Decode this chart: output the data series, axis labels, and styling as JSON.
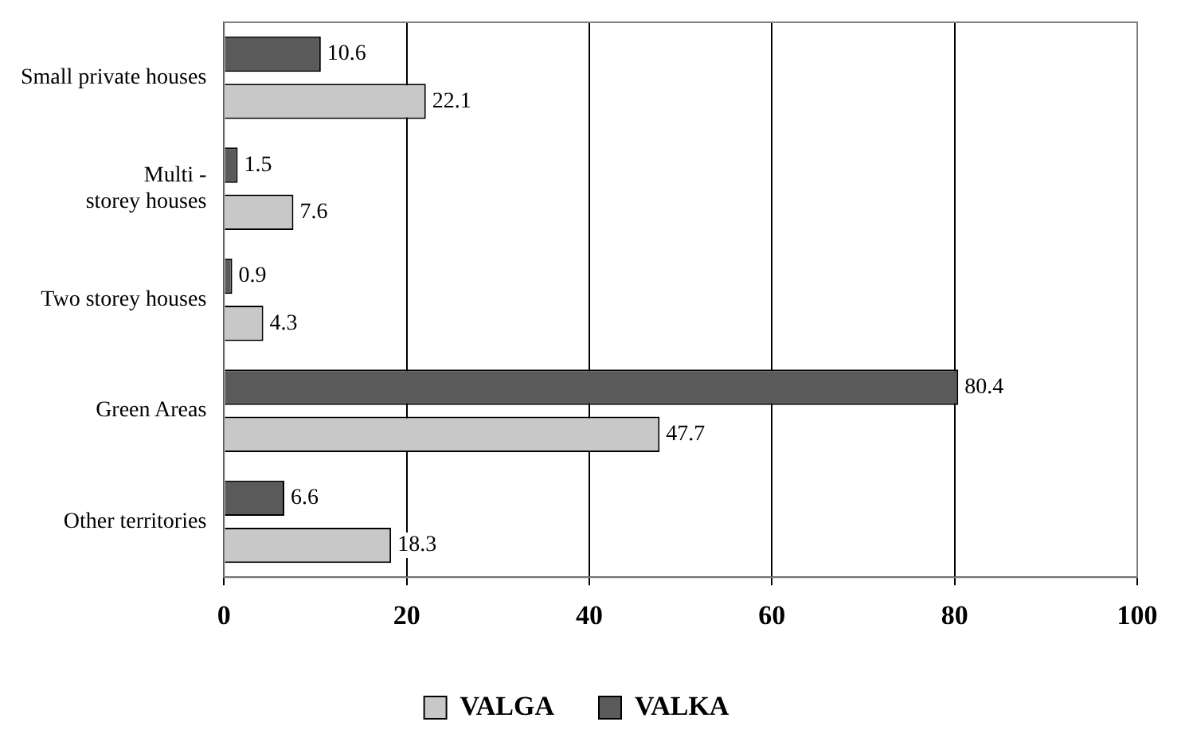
{
  "chart_data": {
    "type": "bar",
    "orientation": "horizontal",
    "categories": [
      "Small private houses",
      "Multi - storey houses",
      "Two storey houses",
      "Green Areas",
      "Other territories"
    ],
    "series": [
      {
        "name": "VALGA",
        "color": "#c8c8c8",
        "values": [
          22.1,
          7.6,
          4.3,
          47.7,
          18.3
        ]
      },
      {
        "name": "VALKA",
        "color": "#5a5a5a",
        "values": [
          10.6,
          1.5,
          0.9,
          80.4,
          6.6
        ]
      }
    ],
    "xlim": [
      0,
      100
    ],
    "xticks": [
      0,
      20,
      40,
      60,
      80,
      100
    ],
    "grid": "x",
    "legend": "bottom",
    "data_labels": true
  }
}
